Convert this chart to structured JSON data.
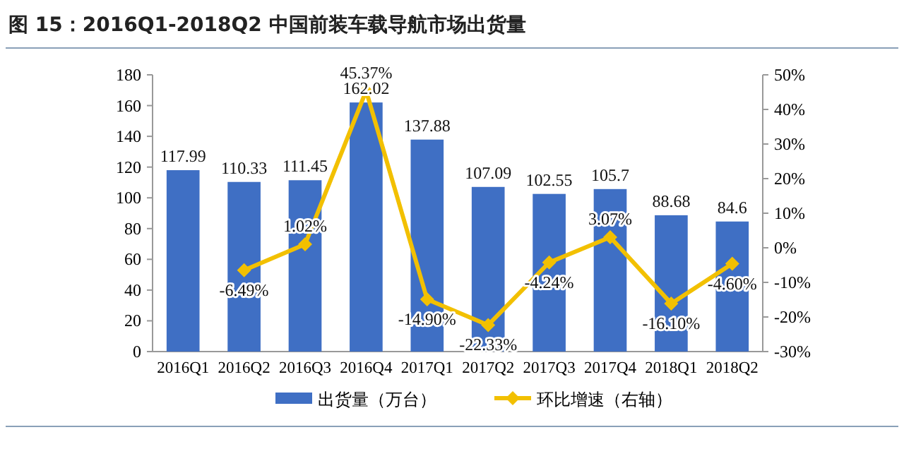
{
  "chart_data": {
    "type": "bar",
    "title": "图 15：2016Q1-2018Q2 中国前装车载导航市场出货量",
    "categories": [
      "2016Q1",
      "2016Q2",
      "2016Q3",
      "2016Q4",
      "2017Q1",
      "2017Q2",
      "2017Q3",
      "2017Q4",
      "2018Q1",
      "2018Q2"
    ],
    "series": [
      {
        "name": "出货量（万台）",
        "color": "#3f6fc4",
        "values": [
          117.99,
          110.33,
          111.45,
          162.02,
          137.88,
          107.09,
          102.55,
          105.7,
          88.68,
          84.6
        ],
        "value_labels": [
          "117.99",
          "110.33",
          "111.45",
          "162.02",
          "137.88",
          "107.09",
          "102.55",
          "105.7",
          "88.68",
          "84.6"
        ]
      },
      {
        "name": "环比增速（右轴）",
        "type": "line",
        "axis": "y2",
        "color": "#f2c000",
        "marker": "diamond",
        "values": [
          null,
          -6.49,
          1.02,
          45.37,
          -14.9,
          -22.33,
          -4.24,
          3.07,
          -16.1,
          -4.6
        ],
        "value_labels": [
          null,
          "-6.49%",
          "1.02%",
          "45.37%",
          "-14.90%",
          "-22.33%",
          "-4.24%",
          "3.07%",
          "-16.10%",
          "-4.60%"
        ]
      }
    ],
    "ylim": [
      0,
      180
    ],
    "yticks": [
      0,
      20,
      40,
      60,
      80,
      100,
      120,
      140,
      160,
      180
    ],
    "y2lim": [
      -30,
      50
    ],
    "y2ticks": [
      {
        "value": -30,
        "label": "-30%"
      },
      {
        "value": -20,
        "label": "-20%"
      },
      {
        "value": -10,
        "label": "-10%"
      },
      {
        "value": 0,
        "label": "0%"
      },
      {
        "value": 10,
        "label": "10%"
      },
      {
        "value": 20,
        "label": "20%"
      },
      {
        "value": 30,
        "label": "30%"
      },
      {
        "value": 40,
        "label": "40%"
      },
      {
        "value": 50,
        "label": "50%"
      }
    ],
    "legend": "bottom"
  }
}
